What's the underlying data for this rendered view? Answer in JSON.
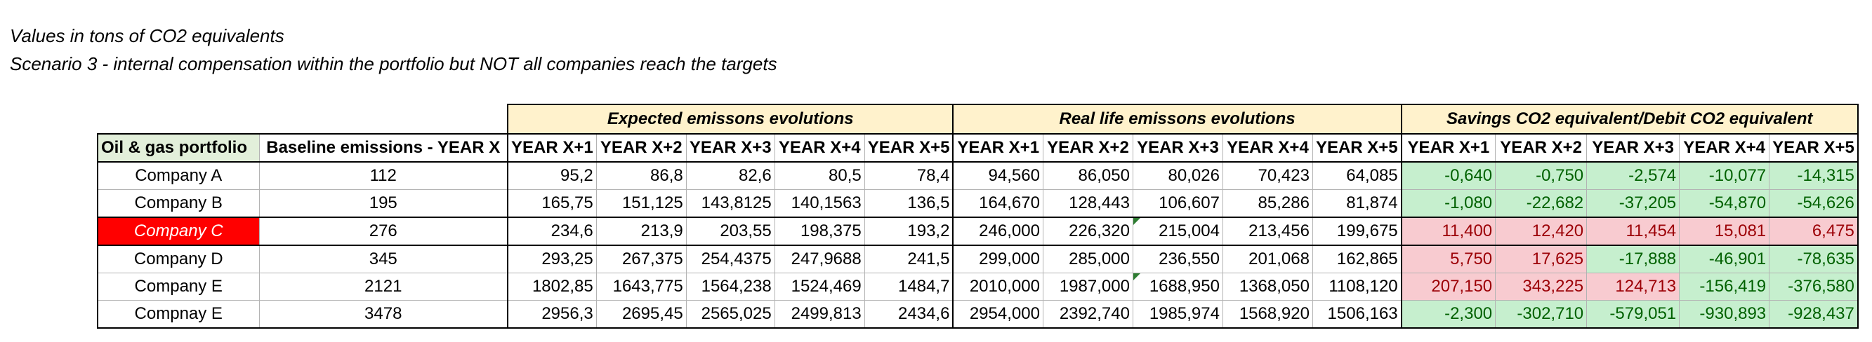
{
  "notes": {
    "line1": "Values in tons of CO2 equivalents",
    "line2": "Scenario 3  - internal compensation within the portfolio but NOT all companies reach the targets"
  },
  "table": {
    "groups": {
      "expected": "Expected emissons evolutions",
      "real": "Real life emissons evolutions",
      "savings": "Savings CO2 equivalent/Debit CO2 equivalent"
    },
    "columns": [
      "Oil & gas portfolio",
      "Baseline emissions - YEAR X",
      "YEAR X+1",
      "YEAR X+2",
      "YEAR X+3",
      "YEAR X+4",
      "YEAR X+5",
      "YEAR X+1",
      "YEAR X+2",
      "YEAR X+3",
      "YEAR X+4",
      "YEAR X+5",
      "YEAR X+1",
      "YEAR X+2",
      "YEAR X+3",
      "YEAR X+4",
      "YEAR X+5"
    ],
    "rows": [
      {
        "company": "Company A",
        "baseline": "112",
        "expected": [
          "95,2",
          "86,8",
          "82,6",
          "80,5",
          "78,4"
        ],
        "real": [
          "94,560",
          "86,050",
          "80,026",
          "70,423",
          "64,085"
        ],
        "savings": [
          "-0,640",
          "-0,750",
          "-2,574",
          "-10,077",
          "-14,315"
        ]
      },
      {
        "company": "Company B",
        "baseline": "195",
        "expected": [
          "165,75",
          "151,125",
          "143,8125",
          "140,1563",
          "136,5"
        ],
        "real": [
          "164,670",
          "128,443",
          "106,607",
          "85,286",
          "81,874"
        ],
        "savings": [
          "-1,080",
          "-22,682",
          "-37,205",
          "-54,870",
          "-54,626"
        ]
      },
      {
        "company": "Company C",
        "baseline": "276",
        "expected": [
          "234,6",
          "213,9",
          "203,55",
          "198,375",
          "193,2"
        ],
        "real": [
          "246,000",
          "226,320",
          "215,004",
          "213,456",
          "199,675"
        ],
        "savings": [
          "11,400",
          "12,420",
          "11,454",
          "15,081",
          "6,475"
        ]
      },
      {
        "company": "Company D",
        "baseline": "345",
        "expected": [
          "293,25",
          "267,375",
          "254,4375",
          "247,9688",
          "241,5"
        ],
        "real": [
          "299,000",
          "285,000",
          "236,550",
          "201,068",
          "162,865"
        ],
        "savings": [
          "5,750",
          "17,625",
          "-17,888",
          "-46,901",
          "-78,635"
        ]
      },
      {
        "company": "Company E",
        "baseline": "2121",
        "expected": [
          "1802,85",
          "1643,775",
          "1564,238",
          "1524,469",
          "1484,7"
        ],
        "real": [
          "2010,000",
          "1987,000",
          "1688,950",
          "1368,050",
          "1108,120"
        ],
        "savings": [
          "207,150",
          "343,225",
          "124,713",
          "-156,419",
          "-376,580"
        ]
      },
      {
        "company": "Compnay E",
        "baseline": "3478",
        "expected": [
          "2956,3",
          "2695,45",
          "2565,025",
          "2499,813",
          "2434,6"
        ],
        "real": [
          "2954,000",
          "2392,740",
          "1985,974",
          "1568,920",
          "1506,163"
        ],
        "savings": [
          "-2,300",
          "-302,710",
          "-579,051",
          "-930,893",
          "-928,437"
        ]
      }
    ]
  },
  "colors": {
    "group_header_bg": "#fff2cc",
    "first_header_bg": "#e2efda",
    "highlight_row_bg": "#ff0000",
    "saving_bg": "#c6efce",
    "debit_bg": "#f8cbd0"
  }
}
